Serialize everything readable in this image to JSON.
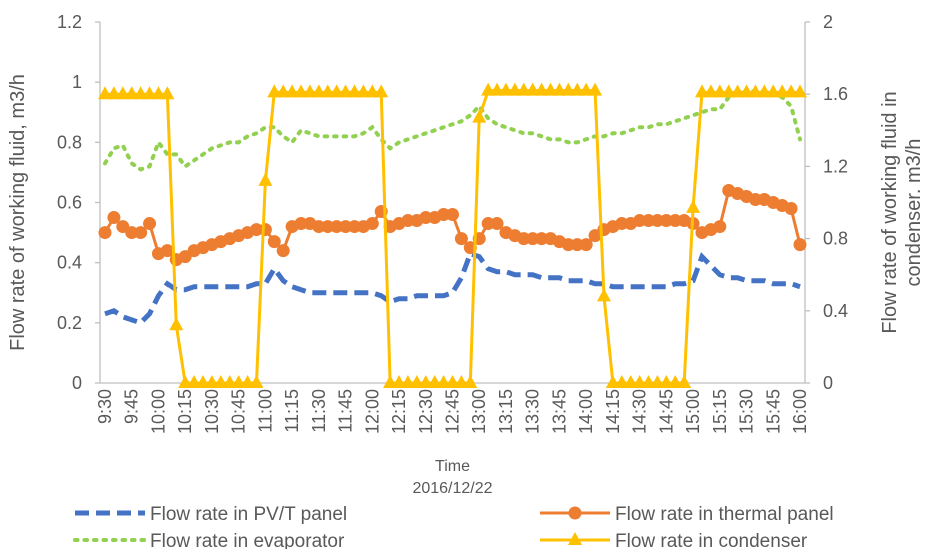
{
  "chart_data": {
    "type": "line",
    "xlabel": [
      "Time",
      "2016/12/22"
    ],
    "ylabel": "Flow rate of working fluid, m3/h",
    "y2label": [
      "Flow rate of working fluid in",
      "condenser. m3/h"
    ],
    "ylim": [
      0,
      1.2
    ],
    "yticks": [
      0,
      0.2,
      0.4,
      0.6,
      0.8,
      1,
      1.2
    ],
    "y2lim": [
      0,
      2
    ],
    "y2ticks": [
      0,
      0.4,
      0.8,
      1.2,
      1.6,
      2
    ],
    "grid": false,
    "legend": "bottom",
    "categories": [
      "9:30",
      null,
      null,
      "9:45",
      null,
      null,
      "10:00",
      null,
      null,
      "10:15",
      null,
      null,
      "10:30",
      null,
      null,
      "10:45",
      null,
      null,
      "11:00",
      null,
      null,
      "11:15",
      null,
      null,
      "11:30",
      null,
      null,
      "11:45",
      null,
      null,
      "12:00",
      null,
      null,
      "12:15",
      null,
      null,
      "12:30",
      null,
      null,
      "12:45",
      null,
      null,
      "13:00",
      null,
      null,
      "13:15",
      null,
      null,
      "13:30",
      null,
      null,
      "13:45",
      null,
      null,
      "14:00",
      null,
      null,
      "14:15",
      null,
      null,
      "14:30",
      null,
      null,
      "14:45",
      null,
      null,
      "15:00",
      null,
      null,
      "15:15",
      null,
      null,
      "15:30",
      null,
      null,
      "15:45",
      null,
      null,
      "16:00"
    ],
    "series": [
      {
        "name": "Flow rate in PV/T panel",
        "color": "#4472c4",
        "line": "dashed",
        "marker": "none",
        "values": [
          0.23,
          0.24,
          0.22,
          0.21,
          0.2,
          0.23,
          0.29,
          0.33,
          0.31,
          0.31,
          0.32,
          0.32,
          0.32,
          0.32,
          0.32,
          0.32,
          0.32,
          0.33,
          0.33,
          0.38,
          0.34,
          0.32,
          0.31,
          0.3,
          0.3,
          0.3,
          0.3,
          0.3,
          0.3,
          0.3,
          0.3,
          0.29,
          0.27,
          0.28,
          0.28,
          0.29,
          0.29,
          0.29,
          0.29,
          0.3,
          0.35,
          0.43,
          0.42,
          0.38,
          0.37,
          0.37,
          0.36,
          0.36,
          0.36,
          0.35,
          0.35,
          0.35,
          0.34,
          0.34,
          0.34,
          0.33,
          0.33,
          0.32,
          0.32,
          0.32,
          0.32,
          0.32,
          0.32,
          0.32,
          0.33,
          0.33,
          0.34,
          0.42,
          0.39,
          0.36,
          0.35,
          0.35,
          0.34,
          0.34,
          0.34,
          0.33,
          0.33,
          0.33,
          0.32
        ]
      },
      {
        "name": "Flow rate in thermal panel",
        "color": "#ed7d31",
        "line": "solid",
        "marker": "circle",
        "values": [
          0.5,
          0.55,
          0.52,
          0.5,
          0.5,
          0.53,
          0.43,
          0.44,
          0.41,
          0.42,
          0.44,
          0.45,
          0.46,
          0.47,
          0.48,
          0.49,
          0.5,
          0.51,
          0.51,
          0.47,
          0.44,
          0.52,
          0.53,
          0.53,
          0.52,
          0.52,
          0.52,
          0.52,
          0.52,
          0.52,
          0.53,
          0.57,
          0.52,
          0.53,
          0.54,
          0.54,
          0.55,
          0.55,
          0.56,
          0.56,
          0.48,
          0.45,
          0.48,
          0.53,
          0.53,
          0.5,
          0.49,
          0.48,
          0.48,
          0.48,
          0.48,
          0.47,
          0.46,
          0.46,
          0.46,
          0.49,
          0.51,
          0.52,
          0.53,
          0.53,
          0.54,
          0.54,
          0.54,
          0.54,
          0.54,
          0.54,
          0.53,
          0.5,
          0.51,
          0.52,
          0.64,
          0.63,
          0.62,
          0.61,
          0.61,
          0.6,
          0.59,
          0.58,
          0.46
        ]
      },
      {
        "name": "Flow rate in evaporator",
        "color": "#92d050",
        "line": "dotted",
        "marker": "none",
        "values": [
          0.73,
          0.78,
          0.79,
          0.73,
          0.71,
          0.72,
          0.8,
          0.76,
          0.76,
          0.72,
          0.74,
          0.76,
          0.78,
          0.79,
          0.8,
          0.8,
          0.82,
          0.83,
          0.85,
          0.85,
          0.82,
          0.8,
          0.84,
          0.83,
          0.82,
          0.82,
          0.82,
          0.82,
          0.82,
          0.83,
          0.85,
          0.81,
          0.78,
          0.8,
          0.81,
          0.82,
          0.83,
          0.84,
          0.85,
          0.86,
          0.87,
          0.89,
          0.92,
          0.88,
          0.86,
          0.85,
          0.84,
          0.83,
          0.83,
          0.82,
          0.81,
          0.81,
          0.8,
          0.8,
          0.81,
          0.82,
          0.82,
          0.83,
          0.83,
          0.84,
          0.85,
          0.85,
          0.86,
          0.86,
          0.87,
          0.88,
          0.89,
          0.9,
          0.91,
          0.91,
          0.95,
          0.96,
          0.97,
          0.97,
          0.97,
          0.96,
          0.95,
          0.92,
          0.81
        ]
      },
      {
        "name": "Flow rate in condenser",
        "color": "#ffc000",
        "line": "solid",
        "marker": "triangle",
        "axis": "y2",
        "values": [
          1.6,
          1.6,
          1.6,
          1.6,
          1.6,
          1.6,
          1.6,
          1.6,
          0.32,
          0,
          0,
          0,
          0,
          0,
          0,
          0,
          0,
          0,
          1.12,
          1.61,
          1.61,
          1.61,
          1.61,
          1.61,
          1.61,
          1.61,
          1.61,
          1.61,
          1.61,
          1.61,
          1.61,
          1.61,
          0,
          0,
          0,
          0,
          0,
          0,
          0,
          0,
          0,
          0,
          1.47,
          1.62,
          1.62,
          1.62,
          1.62,
          1.62,
          1.62,
          1.62,
          1.62,
          1.62,
          1.62,
          1.62,
          1.62,
          1.62,
          0.48,
          0,
          0,
          0,
          0,
          0,
          0,
          0,
          0,
          0,
          0.97,
          1.61,
          1.61,
          1.61,
          1.61,
          1.61,
          1.61,
          1.61,
          1.61,
          1.61,
          1.61,
          1.61,
          1.61
        ]
      }
    ]
  }
}
